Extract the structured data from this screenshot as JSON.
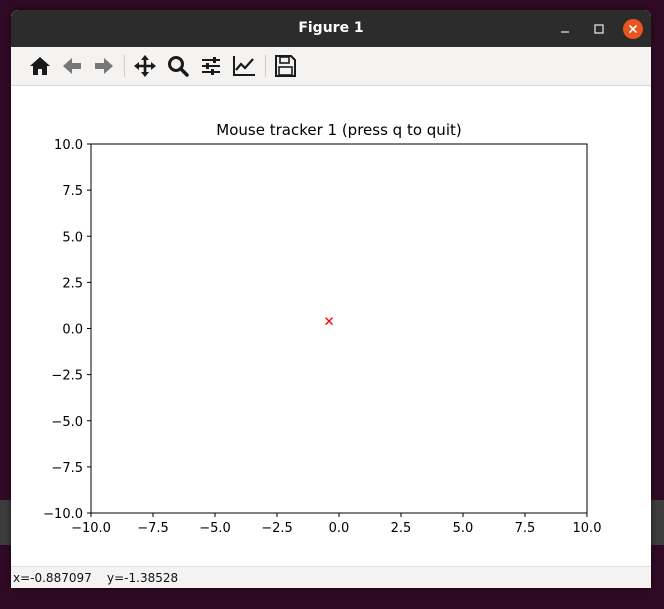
{
  "window": {
    "title": "Figure 1",
    "controls": [
      "minimize",
      "maximize",
      "close"
    ]
  },
  "toolbar": {
    "tools": [
      {
        "name": "home-icon"
      },
      {
        "name": "back-icon"
      },
      {
        "name": "forward-icon"
      },
      {
        "name": "pan-icon"
      },
      {
        "name": "zoom-icon"
      },
      {
        "name": "subplots-config-icon"
      },
      {
        "name": "edit-axis-icon"
      },
      {
        "name": "save-icon"
      }
    ]
  },
  "status": {
    "coords": "x=-0.887097    y=-1.38528"
  },
  "chart_data": {
    "type": "scatter",
    "title": "Mouse tracker 1 (press q to quit)",
    "xlabel": "",
    "ylabel": "",
    "xlim": [
      -10.0,
      10.0
    ],
    "ylim": [
      -10.0,
      10.0
    ],
    "xticks": [
      "−10.0",
      "−7.5",
      "−5.0",
      "−2.5",
      "0.0",
      "2.5",
      "5.0",
      "7.5",
      "10.0"
    ],
    "yticks": [
      "10.0",
      "7.5",
      "5.0",
      "2.5",
      "0.0",
      "−2.5",
      "−5.0",
      "−7.5",
      "−10.0"
    ],
    "xtick_values": [
      -10,
      -7.5,
      -5,
      -2.5,
      0,
      2.5,
      5,
      7.5,
      10
    ],
    "ytick_values": [
      10,
      7.5,
      5,
      2.5,
      0,
      -2.5,
      -5,
      -7.5,
      -10
    ],
    "points": [
      {
        "x": -0.4,
        "y": 0.4,
        "marker": "x",
        "color": "#ff0000"
      }
    ],
    "grid": false
  },
  "colors": {
    "titlebar": "#2c2c2c",
    "close_button": "#e95420",
    "toolbar": "#f4f3f2"
  }
}
